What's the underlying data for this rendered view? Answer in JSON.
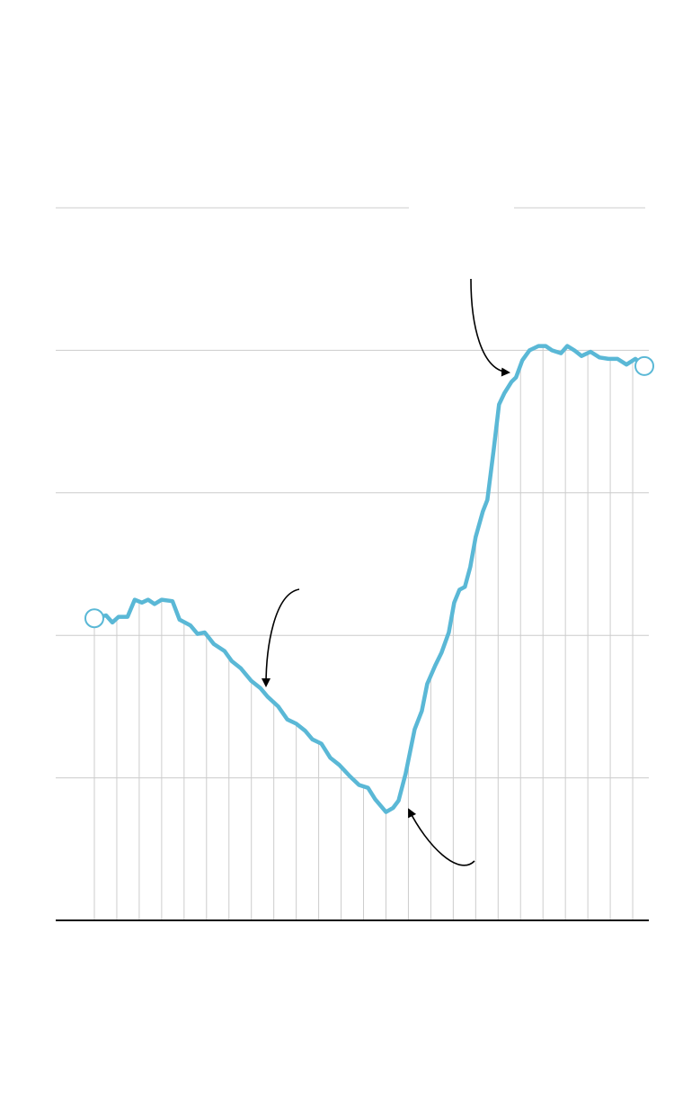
{
  "chart_data": {
    "type": "line",
    "title": "",
    "xlabel": "",
    "ylabel": "",
    "xlim": [
      -1.7,
      24.7
    ],
    "ylim": [
      0,
      5
    ],
    "grid": {
      "horizontal": true,
      "vertical": true
    },
    "horizontal_gridlines": [
      1,
      2,
      3,
      4,
      5
    ],
    "vertical_gridlines": [
      0,
      1,
      2,
      3,
      4,
      5,
      6,
      7,
      8,
      9,
      10,
      11,
      12,
      13,
      14,
      15,
      16,
      17,
      18,
      19,
      20,
      21,
      22,
      23,
      24
    ],
    "line_color": "#5ab8d6",
    "axis_color": "#111111",
    "grid_color": "#cccccc",
    "series": [
      {
        "x": [
          0,
          0.52,
          0.8,
          1.08,
          1.48,
          1.8,
          2.12,
          2.4,
          2.68,
          3,
          3.48,
          3.8,
          4.28,
          4.6,
          4.92,
          5.32,
          5.8,
          6.12,
          6.52,
          7,
          7.4,
          7.72,
          8.2,
          8.6,
          9,
          9.4,
          9.72,
          10.12,
          10.52,
          10.92,
          11.4,
          11.8,
          12.2,
          12.52,
          13,
          13.32,
          13.56,
          13.88,
          14.28,
          14.6,
          14.84,
          15.2,
          15.48,
          15.8,
          16.04,
          16.28,
          16.52,
          16.76,
          17,
          17.32,
          17.52,
          17.8,
          18.04,
          18.28,
          18.6,
          18.8,
          19.08,
          19.4,
          19.8,
          20.12,
          20.4,
          20.8,
          21.08,
          21.4,
          21.72,
          22.12,
          22.52,
          22.92,
          23.32,
          23.72,
          24.12,
          24.52
        ],
        "y": [
          2.12,
          2.14,
          2.09,
          2.13,
          2.13,
          2.25,
          2.23,
          2.25,
          2.22,
          2.25,
          2.24,
          2.11,
          2.07,
          2.01,
          2.02,
          1.94,
          1.89,
          1.82,
          1.77,
          1.68,
          1.63,
          1.57,
          1.5,
          1.41,
          1.38,
          1.33,
          1.27,
          1.24,
          1.14,
          1.09,
          1.01,
          0.95,
          0.93,
          0.85,
          0.76,
          0.79,
          0.84,
          1.03,
          1.34,
          1.47,
          1.66,
          1.79,
          1.88,
          2.02,
          2.23,
          2.32,
          2.34,
          2.48,
          2.69,
          2.87,
          2.95,
          3.3,
          3.62,
          3.7,
          3.78,
          3.81,
          3.93,
          4,
          4.03,
          4.03,
          4,
          3.98,
          4.03,
          4,
          3.96,
          3.99,
          3.95,
          3.94,
          3.94,
          3.9,
          3.94,
          3.89
        ]
      }
    ],
    "endpoint_markers": [
      "start",
      "end"
    ],
    "annotations": [
      {
        "type": "arrow",
        "points_to": {
          "x": 18.7,
          "y": 3.87
        }
      },
      {
        "type": "arrow",
        "points_to": {
          "x": 7.6,
          "y": 1.62
        }
      },
      {
        "type": "arrow",
        "points_to": {
          "x": 13.9,
          "y": 0.81
        }
      }
    ]
  }
}
